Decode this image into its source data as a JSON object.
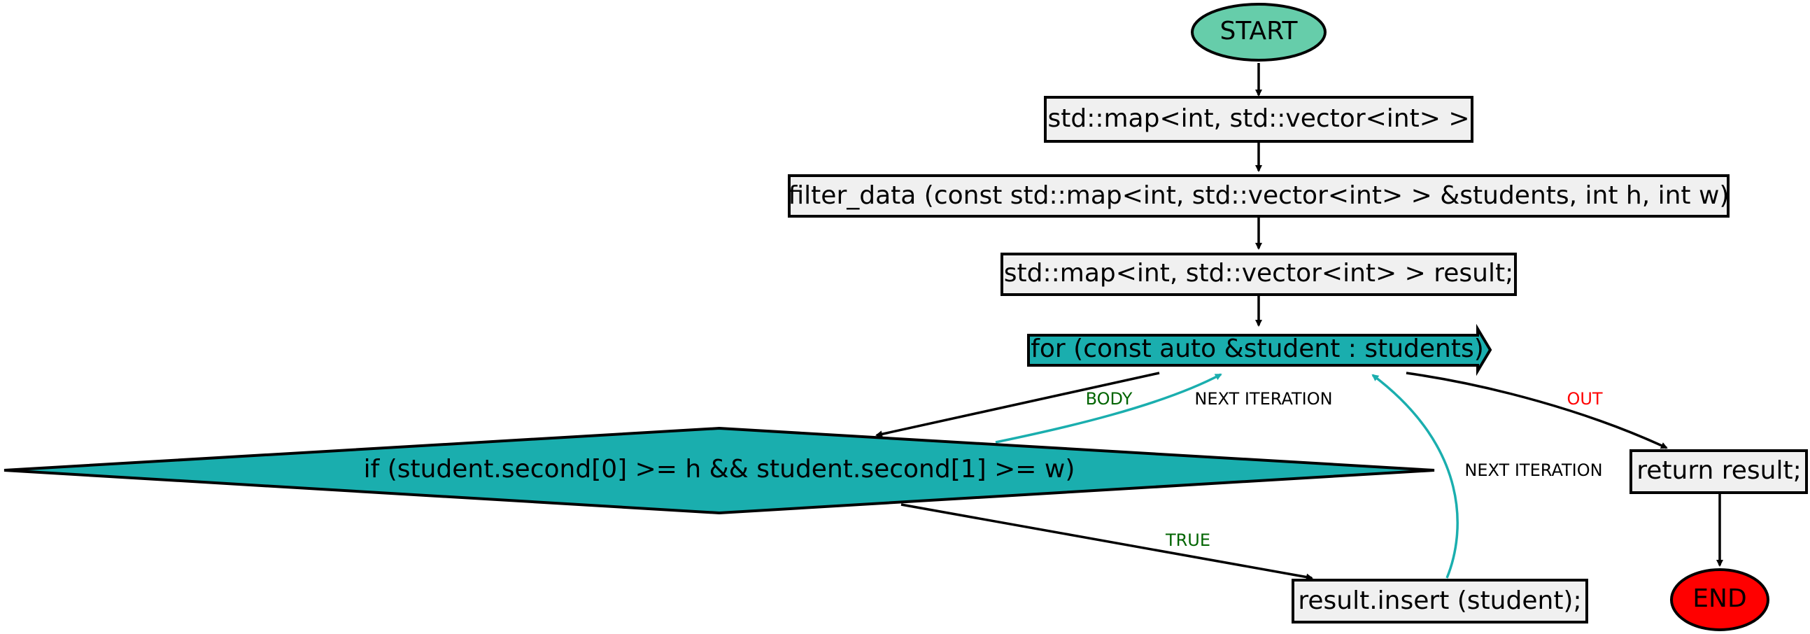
{
  "colors": {
    "start_fill": "#66cdaa",
    "end_fill": "#ff0000",
    "box_fill": "#f0f0f0",
    "loop_fill": "#1aaeae",
    "decision_fill": "#1aaeae",
    "edge_default": "#000000",
    "edge_loop": "#1aaeae",
    "label_body": "#006400",
    "label_true": "#006400",
    "label_out": "#ff0000",
    "label_next": "#000000"
  },
  "nodes": {
    "start": "START",
    "map_type": "std::map<int, std::vector<int> >",
    "function_sig": "filter_data (const std::map<int, std::vector<int> > &students, int h, int w)",
    "result_decl": "std::map<int, std::vector<int> > result;",
    "for_loop": "for (const auto &student : students)",
    "if_cond": "if (student.second[0] >= h && student.second[1] >= w)",
    "insert": "result.insert (student);",
    "return": "return result;",
    "end": "END"
  },
  "edge_labels": {
    "body": "BODY",
    "next_iteration_1": "NEXT ITERATION",
    "out": "OUT",
    "true": "TRUE",
    "next_iteration_2": "NEXT ITERATION"
  }
}
